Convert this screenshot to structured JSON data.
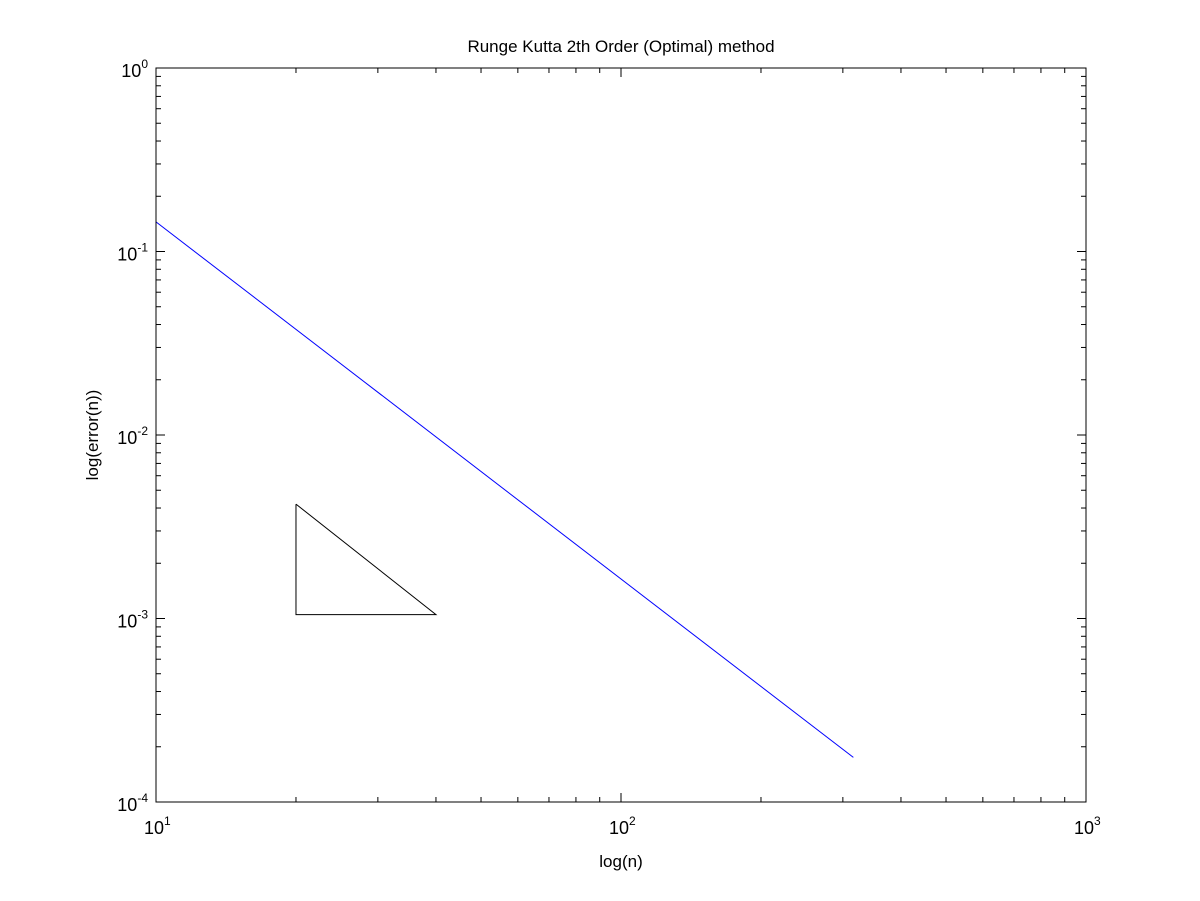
{
  "chart_data": {
    "type": "line",
    "title": "Runge Kutta 2th Order (Optimal) method",
    "xlabel": "log(n)",
    "ylabel": "log(error(n))",
    "xscale": "log",
    "yscale": "log",
    "xlim": [
      10,
      1000
    ],
    "ylim": [
      0.0001,
      1
    ],
    "grid": false,
    "x_ticks": [
      {
        "value": 10,
        "base": "10",
        "exp": "1"
      },
      {
        "value": 100,
        "base": "10",
        "exp": "2"
      },
      {
        "value": 1000,
        "base": "10",
        "exp": "3"
      }
    ],
    "y_ticks": [
      {
        "value": 0.0001,
        "base": "10",
        "exp": "-4"
      },
      {
        "value": 0.001,
        "base": "10",
        "exp": "-3"
      },
      {
        "value": 0.01,
        "base": "10",
        "exp": "-2"
      },
      {
        "value": 0.1,
        "base": "10",
        "exp": "-1"
      },
      {
        "value": 1,
        "base": "10",
        "exp": "0"
      }
    ],
    "series": [
      {
        "name": "error",
        "color": "#0000ff",
        "x": [
          10,
          316
        ],
        "y": [
          0.145,
          0.000175
        ]
      }
    ],
    "slope_triangle": {
      "color": "#000000",
      "x": [
        20,
        20,
        40,
        20
      ],
      "y": [
        0.0042,
        0.00105,
        0.00105,
        0.0042
      ]
    }
  }
}
